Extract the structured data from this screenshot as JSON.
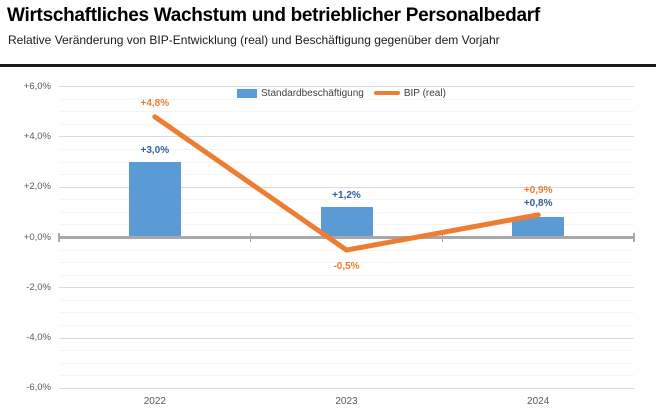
{
  "header": {
    "title": "Wirtschaftliches Wachstum und betrieblicher Personalbedarf",
    "subtitle": "Relative Veränderung von BIP-Entwicklung (real) und Beschäftigung gegenüber dem Vorjahr"
  },
  "legend": {
    "items": [
      {
        "label": "Standardbeschäftigung",
        "swatch": "bar",
        "color": "#5B9BD5"
      },
      {
        "label": "BIP (real)",
        "swatch": "line",
        "color": "#ED7D31"
      }
    ]
  },
  "chart_data": {
    "type": "bar+line",
    "categories": [
      "2022",
      "2023",
      "2024"
    ],
    "series": [
      {
        "name": "Standardbeschäftigung",
        "type": "bar",
        "color": "#5B9BD5",
        "label_color": "#2E5FA3",
        "values": [
          3.0,
          1.2,
          0.8
        ],
        "labels": [
          "+3,0%",
          "+1,2%",
          "+0,8%"
        ]
      },
      {
        "name": "BIP (real)",
        "type": "line",
        "color": "#ED7D31",
        "values": [
          4.8,
          -0.5,
          0.9
        ],
        "labels": [
          "+4,8%",
          "-0,5%",
          "+0,9%"
        ],
        "label_positions": [
          "above",
          "below",
          "above"
        ]
      }
    ],
    "y_axis": {
      "min": -6,
      "max": 6,
      "major_step": 2,
      "minor_step": 0.5,
      "tick_labels": [
        "+6,0%",
        "+4,0%",
        "+2,0%",
        "+0,0%",
        "-2,0%",
        "-4,0%",
        "-6,0%"
      ]
    },
    "grid": true,
    "legend_position": "top",
    "axis_color": "#A8A8A8",
    "tick_text_color": "#595959"
  }
}
